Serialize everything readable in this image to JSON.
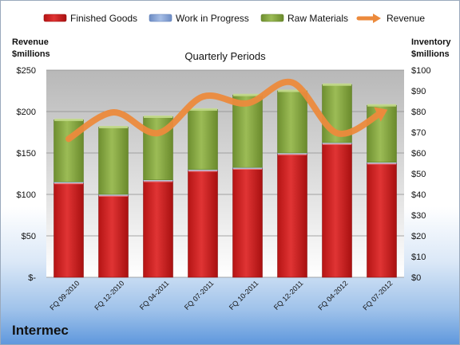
{
  "company": "Intermec",
  "colors": {
    "finished_goods": "#d42020",
    "work_in_progress": "#8aa6d8",
    "raw_materials": "#8fb04a",
    "revenue": "#ec8a3c"
  },
  "chart_data": {
    "type": "bar",
    "stacked": true,
    "title": "Quarterly Periods",
    "ylabel_left": "Revenue\n$millions",
    "ylabel_right": "Inventory\n$millions",
    "categories": [
      "FQ 09-2010",
      "FQ 12-2010",
      "FQ 04-2011",
      "FQ 07-2011",
      "FQ 10-2011",
      "FQ 12-2011",
      "FQ 04-2012",
      "FQ 07-2012"
    ],
    "left_axis": {
      "min": 0,
      "max": 250,
      "ticks": [
        "$-",
        "$50",
        "$100",
        "$150",
        "$200",
        "$250"
      ]
    },
    "right_axis": {
      "min": 0,
      "max": 100,
      "ticks": [
        "$0",
        "$10",
        "$20",
        "$30",
        "$40",
        "$50",
        "$60",
        "$70",
        "$80",
        "$90",
        "$100"
      ]
    },
    "grid": true,
    "legend_position": "top",
    "series": [
      {
        "name": "Finished Goods",
        "type": "bar",
        "axis": "right",
        "values": [
          45.5,
          39.5,
          46.5,
          51.5,
          52.5,
          59.5,
          64.5,
          55
        ]
      },
      {
        "name": "Work in Progress",
        "type": "bar",
        "axis": "right",
        "values": [
          0.5,
          0.5,
          0.5,
          0.5,
          0.5,
          0.5,
          0.5,
          0.5
        ]
      },
      {
        "name": "Raw Materials",
        "type": "bar",
        "axis": "right",
        "values": [
          30,
          32.5,
          30.5,
          29,
          35,
          30,
          28,
          27.5
        ]
      },
      {
        "name": "Revenue",
        "type": "line",
        "axis": "left",
        "values": [
          167,
          199,
          174,
          218,
          210,
          235,
          174,
          199
        ]
      }
    ]
  }
}
